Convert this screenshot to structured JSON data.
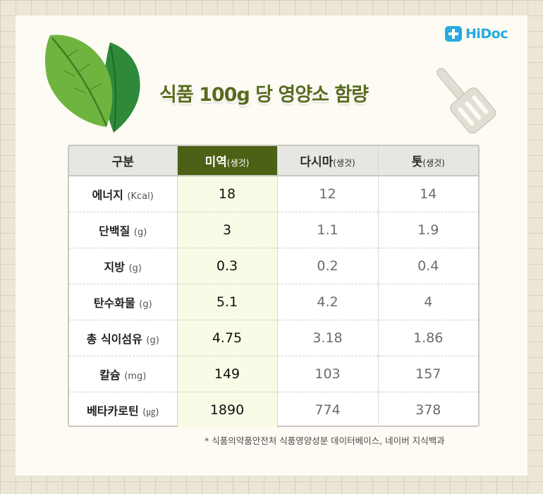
{
  "brand": {
    "logo_text": "HiDoc",
    "logo_color": "#27a9e1"
  },
  "title": "식품 100g 당 영양소 함량",
  "colors": {
    "accent": "#4c6115",
    "title": "#5a6b1e",
    "highlight_bg": "#f8fbe6"
  },
  "icons": [
    "leaf-illustration-icon",
    "spatula-icon",
    "hidoc-logo-icon"
  ],
  "table": {
    "headers": [
      {
        "main": "구분",
        "sub": ""
      },
      {
        "main": "미역",
        "sub": "(생것)"
      },
      {
        "main": "다시마",
        "sub": "(생것)"
      },
      {
        "main": "톳",
        "sub": "(생것)"
      }
    ],
    "rows": [
      {
        "label": "에너지",
        "unit": "(Kcal)",
        "values": [
          "18",
          "12",
          "14"
        ]
      },
      {
        "label": "단백질",
        "unit": "(g)",
        "values": [
          "3",
          "1.1",
          "1.9"
        ]
      },
      {
        "label": "지방",
        "unit": "(g)",
        "values": [
          "0.3",
          "0.2",
          "0.4"
        ]
      },
      {
        "label": "탄수화물",
        "unit": "(g)",
        "values": [
          "5.1",
          "4.2",
          "4"
        ]
      },
      {
        "label": "총 식이섬유",
        "unit": "(g)",
        "values": [
          "4.75",
          "3.18",
          "1.86"
        ]
      },
      {
        "label": "칼슘",
        "unit": "(mg)",
        "values": [
          "149",
          "103",
          "157"
        ]
      },
      {
        "label": "베타카로틴",
        "unit": "(㎍)",
        "values": [
          "1890",
          "774",
          "378"
        ]
      }
    ]
  },
  "footnote": "*  식품의약품안전처 식품영양성분 데이터베이스, 네이버 지식백과"
}
